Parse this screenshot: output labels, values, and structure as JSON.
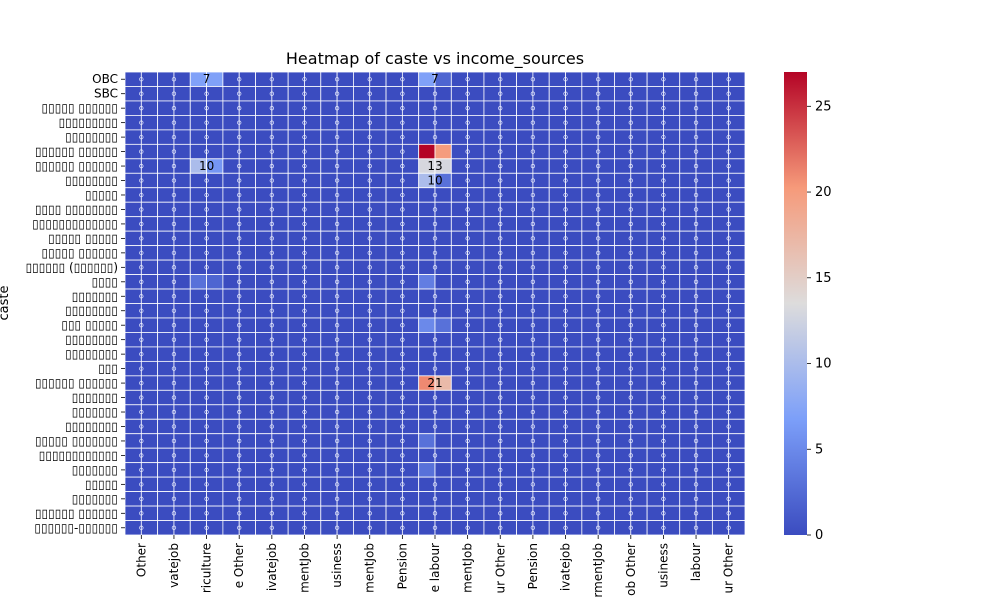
{
  "chart_data": {
    "type": "heatmap",
    "title": "Heatmap of caste vs income_sources",
    "xlabel": "",
    "ylabel": "caste",
    "x_tick_labels": [
      "Other",
      "vatejob",
      "riculture",
      "e Other",
      "ivatejob",
      "mentJob",
      "usiness",
      "mentJob",
      "Pension",
      "e labour",
      "mentJob",
      "ur Other",
      "Pension",
      "ivatejob",
      "rmentJob",
      "ob Other",
      "usiness",
      "labour",
      "ur Other"
    ],
    "y_tick_labels": [
      "OBC",
      "SBC",
      "▯▯▯▯▯ ▯▯▯▯▯▯",
      "▯▯▯▯▯▯▯▯▯",
      "▯▯▯▯▯▯▯▯",
      "▯▯▯▯▯▯ ▯▯▯▯▯▯",
      "▯▯▯▯▯▯ ▯▯▯▯▯▯",
      "▯▯▯▯▯▯▯▯",
      "▯▯▯▯▯",
      "▯▯▯▯ ▯▯▯▯▯▯▯▯",
      "▯▯▯▯▯▯▯▯▯▯▯▯▯",
      "▯▯▯▯▯ ▯▯▯▯▯",
      "▯▯▯▯▯ ▯▯▯▯▯▯",
      "▯▯▯▯▯▯ (▯▯▯▯▯▯)",
      "▯▯▯▯",
      "▯▯▯▯▯▯▯",
      "▯▯▯▯▯▯▯▯",
      "▯▯▯ ▯▯▯▯▯",
      "▯▯▯▯▯▯▯▯",
      "▯▯▯▯▯▯▯▯",
      "▯▯▯",
      "▯▯▯▯▯▯ ▯▯▯▯▯▯",
      "▯▯▯▯▯▯▯",
      "▯▯▯▯▯▯▯",
      "▯▯▯▯▯▯▯▯",
      "▯▯▯▯▯ ▯▯▯▯▯▯▯",
      "▯▯▯▯▯▯▯▯▯▯▯▯",
      "▯▯▯▯▯▯▯",
      "▯▯▯▯▯",
      "▯▯▯▯▯▯▯",
      "▯▯▯▯▯▯ ▯▯▯▯▯▯",
      "▯▯▯▯▯▯-▯▯▯▯▯▯"
    ],
    "x_tick_columns": [
      0,
      2,
      4,
      6,
      8,
      10,
      12,
      14,
      16,
      18,
      20,
      22,
      24,
      26,
      28,
      30,
      32,
      34,
      36
    ],
    "n_cols": 38,
    "n_rows": 32,
    "colorbar": {
      "vmin": 0,
      "vmax": 27,
      "ticks": [
        0,
        5,
        10,
        15,
        20,
        25
      ]
    },
    "colormap": "coolwarm",
    "default_value": 0,
    "cells": [
      {
        "row": 0,
        "col": 4,
        "value": 7
      },
      {
        "row": 0,
        "col": 5,
        "value": 7
      },
      {
        "row": 0,
        "col": 18,
        "value": 7
      },
      {
        "row": 0,
        "col": 19,
        "value": 2
      },
      {
        "row": 5,
        "col": 18,
        "value": 27
      },
      {
        "row": 5,
        "col": 19,
        "value": 20
      },
      {
        "row": 6,
        "col": 4,
        "value": 10
      },
      {
        "row": 6,
        "col": 5,
        "value": 6
      },
      {
        "row": 6,
        "col": 18,
        "value": 13
      },
      {
        "row": 6,
        "col": 19,
        "value": 13
      },
      {
        "row": 7,
        "col": 18,
        "value": 10
      },
      {
        "row": 7,
        "col": 19,
        "value": 3
      },
      {
        "row": 14,
        "col": 4,
        "value": 3
      },
      {
        "row": 14,
        "col": 5,
        "value": 2
      },
      {
        "row": 14,
        "col": 18,
        "value": 4
      },
      {
        "row": 17,
        "col": 18,
        "value": 5
      },
      {
        "row": 17,
        "col": 19,
        "value": 3
      },
      {
        "row": 21,
        "col": 18,
        "value": 21
      },
      {
        "row": 21,
        "col": 19,
        "value": 17
      },
      {
        "row": 25,
        "col": 18,
        "value": 3
      },
      {
        "row": 27,
        "col": 18,
        "value": 3
      }
    ],
    "visible_annotations": [
      {
        "row": 0,
        "col": 4,
        "text": "7"
      },
      {
        "row": 0,
        "col": 18,
        "text": "7"
      },
      {
        "row": 6,
        "col": 4,
        "text": "10"
      },
      {
        "row": 6,
        "col": 18,
        "text": "13"
      },
      {
        "row": 7,
        "col": 18,
        "text": "10"
      },
      {
        "row": 21,
        "col": 18,
        "text": "21"
      }
    ]
  }
}
